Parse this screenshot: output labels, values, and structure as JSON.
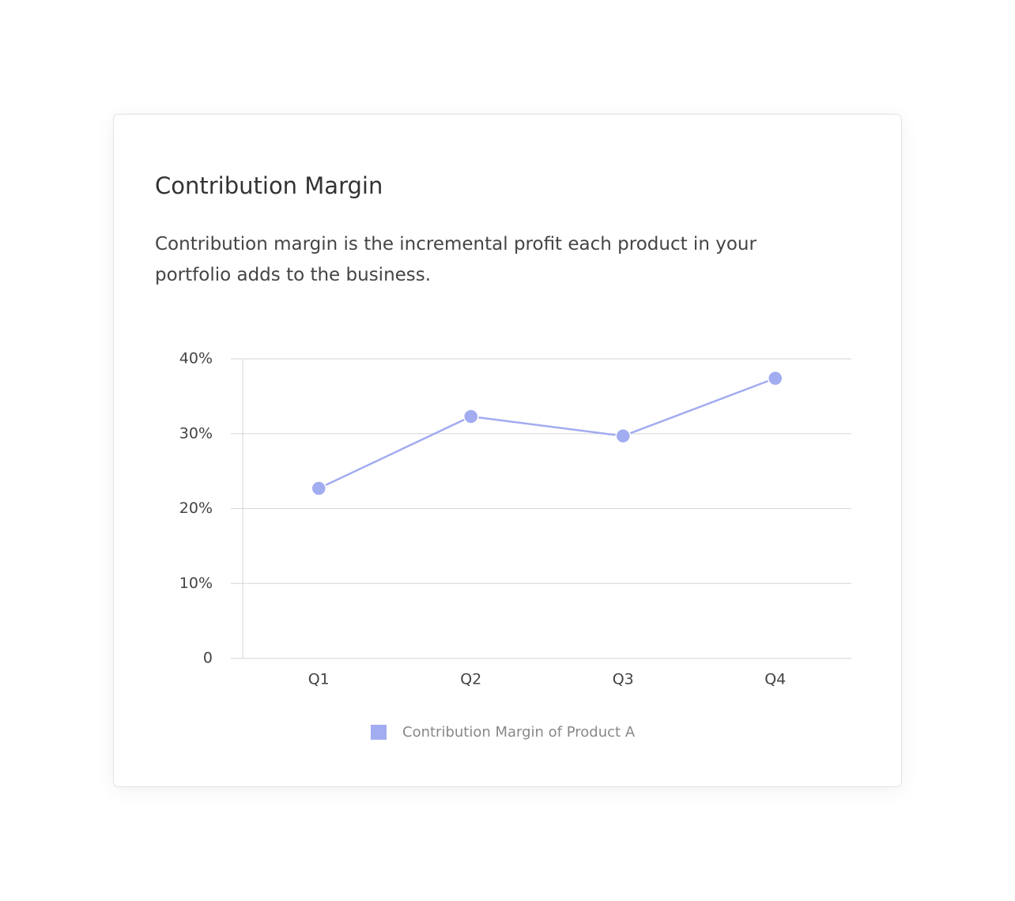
{
  "chart_data": {
    "type": "line",
    "title": "Contribution Margin",
    "subtitle": "Contribution margin is the incremental profit each product in your portfolio adds to the business.",
    "categories": [
      "Q1",
      "Q2",
      "Q3",
      "Q4"
    ],
    "series": [
      {
        "name": "Contribution Margin of Product A",
        "color": "#a2acf0",
        "values": [
          22.7,
          32.3,
          29.7,
          37.4
        ]
      }
    ],
    "ylim": [
      0,
      40
    ],
    "yticks": [
      0,
      {
        "value": 10,
        "label": "10%"
      },
      {
        "value": 20,
        "label": "20%"
      },
      {
        "value": 30,
        "label": "30%"
      },
      {
        "value": 40,
        "label": "40%"
      }
    ],
    "grid": true
  }
}
